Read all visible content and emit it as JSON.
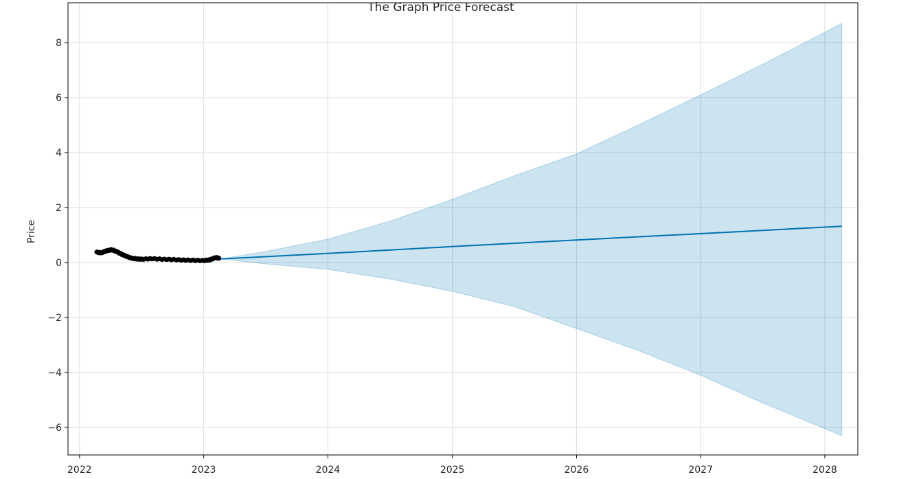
{
  "chart_data": {
    "type": "line",
    "title": "The Graph Price Forecast",
    "xlabel": "",
    "ylabel": "Price",
    "x_axis_type": "date",
    "xlim": [
      "2021-11-28",
      "2028-04-07"
    ],
    "ylim": [
      -7.0,
      9.45
    ],
    "grid": true,
    "x_ticks": [
      {
        "label": "2022",
        "date": "2022-01-01"
      },
      {
        "label": "2023",
        "date": "2023-01-01"
      },
      {
        "label": "2024",
        "date": "2024-01-01"
      },
      {
        "label": "2025",
        "date": "2025-01-01"
      },
      {
        "label": "2026",
        "date": "2026-01-01"
      },
      {
        "label": "2027",
        "date": "2027-01-01"
      },
      {
        "label": "2028",
        "date": "2028-01-01"
      }
    ],
    "y_ticks": [
      {
        "label": "8",
        "value": 8
      },
      {
        "label": "6",
        "value": 6
      },
      {
        "label": "4",
        "value": 4
      },
      {
        "label": "2",
        "value": 2
      },
      {
        "label": "0",
        "value": 0
      },
      {
        "label": "−2",
        "value": -2
      },
      {
        "label": "−4",
        "value": -4
      },
      {
        "label": "−6",
        "value": -6
      }
    ],
    "colors": {
      "forecast_line": "#0072B2",
      "uncertainty_band": "#0072B2",
      "observed_points": "#000000",
      "grid": "#dddddd"
    },
    "series": [
      {
        "kind": "observed",
        "x": [
          "2022-02-20",
          "2022-03-05",
          "2022-03-20",
          "2022-04-05",
          "2022-04-20",
          "2022-05-05",
          "2022-05-20",
          "2022-06-05",
          "2022-06-20",
          "2022-07-05",
          "2022-08-01",
          "2022-09-01",
          "2022-10-01",
          "2022-11-01",
          "2022-12-01",
          "2023-01-01",
          "2023-01-20",
          "2023-02-05",
          "2023-02-15"
        ],
        "y": [
          0.38,
          0.35,
          0.42,
          0.47,
          0.4,
          0.3,
          0.22,
          0.15,
          0.13,
          0.12,
          0.14,
          0.12,
          0.11,
          0.09,
          0.08,
          0.07,
          0.1,
          0.18,
          0.16
        ]
      },
      {
        "kind": "forecast",
        "x": [
          "2022-02-20",
          "2022-04-01",
          "2022-05-01",
          "2022-06-01",
          "2022-09-01",
          "2022-12-01",
          "2023-02-20",
          "2024-01-01",
          "2025-01-01",
          "2026-01-01",
          "2027-01-01",
          "2028-02-20"
        ],
        "y": [
          0.38,
          0.4,
          0.33,
          0.2,
          0.13,
          0.09,
          0.13,
          0.33,
          0.58,
          0.82,
          1.05,
          1.32
        ]
      },
      {
        "kind": "uncertainty_interval",
        "x": [
          "2023-02-20",
          "2023-07-01",
          "2024-01-01",
          "2024-07-01",
          "2025-01-01",
          "2025-07-01",
          "2026-01-01",
          "2026-07-01",
          "2027-01-01",
          "2027-07-01",
          "2028-02-20"
        ],
        "upper": [
          0.13,
          0.4,
          0.85,
          1.5,
          2.3,
          3.15,
          3.95,
          5.0,
          6.1,
          7.2,
          8.7
        ],
        "lower": [
          0.13,
          -0.05,
          -0.25,
          -0.6,
          -1.05,
          -1.6,
          -2.4,
          -3.2,
          -4.1,
          -5.1,
          -6.3
        ]
      }
    ]
  }
}
